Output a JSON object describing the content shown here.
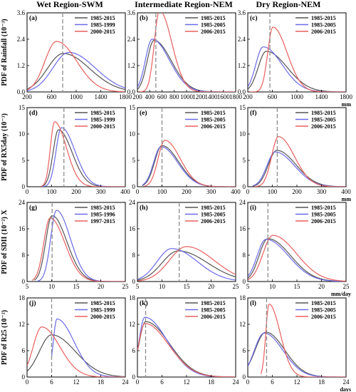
{
  "colors": {
    "black": "#555555",
    "blue": "#6a6ae8",
    "red": "#e8605e",
    "dashed": "#8c8c8c"
  },
  "column_titles": [
    "Wet Region-SWM",
    "Intermediate Region-NEM",
    "Dry Region-NEM"
  ],
  "chart_data": [
    {
      "type": "line",
      "ylabel": "PDF of Rainfall (10⁻³)",
      "unit": "mm",
      "xlim": [
        200,
        1800
      ],
      "ylim": [
        0,
        3.6
      ],
      "yticks": [
        0,
        1.2,
        2.4,
        3.6
      ],
      "ytick_labels": [
        "0.0",
        "1.2",
        "2.4",
        "3.6"
      ],
      "xticks": [
        200,
        600,
        1000,
        1400,
        1800
      ],
      "xticks_panel1": [
        200,
        400,
        600,
        800,
        1000,
        1200,
        1400,
        1600,
        1800
      ],
      "panels": [
        {
          "label": "(a)",
          "dashed_x": 780,
          "legend": [
            "1985-2015",
            "1985-1999",
            "2000-2015"
          ],
          "series": [
            {
              "name": "1985-2015",
              "color": "black",
              "curve": {
                "x0": 200,
                "x1": 1800,
                "mode": 790,
                "peak": 1.75,
                "sl": 260,
                "sr": 430
              }
            },
            {
              "name": "1985-1999",
              "color": "blue",
              "curve": {
                "x0": 200,
                "x1": 1800,
                "mode": 880,
                "peak": 1.8,
                "sl": 260,
                "sr": 430
              }
            },
            {
              "name": "2000-2015",
              "color": "red",
              "curve": {
                "x0": 200,
                "x1": 1800,
                "mode": 680,
                "peak": 2.3,
                "sl": 190,
                "sr": 330
              }
            }
          ]
        },
        {
          "label": "(b)",
          "dashed_x": 500,
          "legend": [
            "1985-2015",
            "1985-2005",
            "2006-2015"
          ],
          "series": [
            {
              "name": "1985-2015",
              "color": "black",
              "curve": {
                "x0": 200,
                "x1": 1800,
                "mode": 470,
                "peak": 2.35,
                "sl": 110,
                "sr": 280
              }
            },
            {
              "name": "1985-2005",
              "color": "blue",
              "curve": {
                "x0": 200,
                "x1": 1800,
                "mode": 440,
                "peak": 2.4,
                "sl": 110,
                "sr": 280
              }
            },
            {
              "name": "2006-2015",
              "color": "red",
              "curve": {
                "x0": 200,
                "x1": 1800,
                "mode": 560,
                "peak": 3.7,
                "sl": 85,
                "sr": 200
              }
            }
          ]
        },
        {
          "label": "(c)",
          "dashed_x": 560,
          "legend": [
            "1985-2015",
            "1985-2005",
            "2006-2015"
          ],
          "series": [
            {
              "name": "1985-2015",
              "color": "black",
              "curve": {
                "x0": 200,
                "x1": 1800,
                "mode": 500,
                "peak": 1.85,
                "sl": 130,
                "sr": 340
              }
            },
            {
              "name": "1985-2005",
              "color": "blue",
              "curve": {
                "x0": 200,
                "x1": 1800,
                "mode": 450,
                "peak": 2.05,
                "sl": 120,
                "sr": 310
              }
            },
            {
              "name": "2006-2015",
              "color": "red",
              "curve": {
                "x0": 200,
                "x1": 1800,
                "mode": 610,
                "peak": 2.95,
                "sl": 85,
                "sr": 230
              }
            }
          ]
        }
      ]
    },
    {
      "type": "line",
      "ylabel": "PDF of RX5day (10⁻³)",
      "unit": "mm",
      "xlim": [
        0,
        400
      ],
      "ylim": [
        0,
        15
      ],
      "yticks": [
        0,
        5,
        10,
        15
      ],
      "ytick_labels": [
        "0",
        "5",
        "10",
        "15"
      ],
      "xticks": [
        0,
        100,
        200,
        300,
        400
      ],
      "panels": [
        {
          "label": "(d)",
          "dashed_x": 150,
          "legend": [
            "1985-2015",
            "1985-1999",
            "2000-2015"
          ],
          "series": [
            {
              "name": "1985-2015",
              "color": "black",
              "curve": {
                "x0": 60,
                "x1": 400,
                "mode": 128,
                "peak": 10.8,
                "sl": 22,
                "sr": 55
              }
            },
            {
              "name": "1985-1999",
              "color": "blue",
              "curve": {
                "x0": 60,
                "x1": 400,
                "mode": 140,
                "peak": 11.2,
                "sl": 22,
                "sr": 55
              }
            },
            {
              "name": "2000-2015",
              "color": "red",
              "curve": {
                "x0": 55,
                "x1": 400,
                "mode": 112,
                "peak": 12.3,
                "sl": 17,
                "sr": 48
              }
            }
          ]
        },
        {
          "label": "(e)",
          "dashed_x": 100,
          "legend": [
            "1985-2015",
            "1985-2005",
            "2006-2015"
          ],
          "series": [
            {
              "name": "1985-2015",
              "color": "black",
              "curve": {
                "x0": 20,
                "x1": 400,
                "mode": 100,
                "peak": 7.8,
                "sl": 30,
                "sr": 68
              }
            },
            {
              "name": "1985-2005",
              "color": "blue",
              "curve": {
                "x0": 20,
                "x1": 400,
                "mode": 96,
                "peak": 7.6,
                "sl": 30,
                "sr": 68
              }
            },
            {
              "name": "2006-2015",
              "color": "red",
              "curve": {
                "x0": 25,
                "x1": 400,
                "mode": 112,
                "peak": 8.8,
                "sl": 28,
                "sr": 62
              }
            }
          ]
        },
        {
          "label": "(f)",
          "dashed_x": 120,
          "legend": [
            "1985-2015",
            "1985-2005",
            "2006-2015"
          ],
          "series": [
            {
              "name": "1985-2015",
              "color": "black",
              "curve": {
                "x0": 20,
                "x1": 400,
                "mode": 118,
                "peak": 6.9,
                "sl": 34,
                "sr": 78
              }
            },
            {
              "name": "1985-2005",
              "color": "blue",
              "curve": {
                "x0": 20,
                "x1": 400,
                "mode": 112,
                "peak": 6.6,
                "sl": 34,
                "sr": 78
              }
            },
            {
              "name": "2006-2015",
              "color": "red",
              "curve": {
                "x0": 25,
                "x1": 400,
                "mode": 125,
                "peak": 9.5,
                "sl": 28,
                "sr": 65
              }
            }
          ]
        }
      ]
    },
    {
      "type": "line",
      "ylabel": "PDF of SDII (10⁻²) X",
      "unit": "mm/day",
      "xlim": [
        5,
        25
      ],
      "ylim": [
        0,
        24
      ],
      "yticks": [
        0,
        8,
        16,
        24
      ],
      "ytick_labels": [
        "0",
        "8",
        "16",
        "24"
      ],
      "xticks": [
        5,
        10,
        15,
        20,
        25
      ],
      "panels": [
        {
          "label": "(g)",
          "dashed_x": 10.1,
          "legend": [
            "1985-2015",
            "1985-1996",
            "1997-2015"
          ],
          "series": [
            {
              "name": "1985-2015",
              "color": "black",
              "curve": {
                "x0": 6.5,
                "x1": 25,
                "mode": 10.1,
                "peak": 20.0,
                "sl": 1.3,
                "sr": 3.0
              }
            },
            {
              "name": "1985-1996",
              "color": "blue",
              "curve": {
                "x0": 7.0,
                "x1": 25,
                "mode": 11.0,
                "peak": 21.6,
                "sl": 1.2,
                "sr": 2.8
              }
            },
            {
              "name": "1997-2015",
              "color": "red",
              "curve": {
                "x0": 6.0,
                "x1": 25,
                "mode": 9.7,
                "peak": 19.3,
                "sl": 1.3,
                "sr": 3.0
              }
            }
          ]
        },
        {
          "label": "(h)",
          "dashed_x": 13.5,
          "legend": [
            "1985-2015",
            "1985-2005",
            "2006-2015"
          ],
          "series": [
            {
              "name": "1985-2015",
              "color": "black",
              "curve": {
                "x0": 5,
                "x1": 25,
                "mode": 13.3,
                "peak": 9.3,
                "sl": 3.3,
                "sr": 6.0
              }
            },
            {
              "name": "1985-2005",
              "color": "blue",
              "curve": {
                "x0": 5,
                "x1": 25,
                "mode": 12.0,
                "peak": 10.0,
                "sl": 3.0,
                "sr": 5.2
              }
            },
            {
              "name": "2006-2015",
              "color": "red",
              "curve": {
                "x0": 5,
                "x1": 25,
                "mode": 15.0,
                "peak": 10.6,
                "sl": 3.5,
                "sr": 5.6
              }
            }
          ]
        },
        {
          "label": "(i)",
          "dashed_x": 9.1,
          "legend": [
            "1985-2015",
            "1985-2005",
            "2006-2015"
          ],
          "series": [
            {
              "name": "1985-2015",
              "color": "black",
              "curve": {
                "x0": 5,
                "x1": 25,
                "mode": 9.1,
                "peak": 13.0,
                "sl": 1.8,
                "sr": 4.6
              }
            },
            {
              "name": "1985-2005",
              "color": "blue",
              "curve": {
                "x0": 5,
                "x1": 25,
                "mode": 8.7,
                "peak": 12.8,
                "sl": 1.8,
                "sr": 4.6
              }
            },
            {
              "name": "2006-2015",
              "color": "red",
              "curve": {
                "x0": 5,
                "x1": 25,
                "mode": 10.1,
                "peak": 14.0,
                "sl": 2.0,
                "sr": 4.8
              }
            }
          ]
        }
      ]
    },
    {
      "type": "line",
      "ylabel": "PDF of R25 (10⁻²)",
      "unit": "days",
      "xlim": [
        0,
        24
      ],
      "ylim": [
        0,
        18
      ],
      "yticks": [
        0,
        6,
        12,
        18
      ],
      "ytick_labels": [
        "0",
        "6",
        "12",
        "18"
      ],
      "xticks": [
        0,
        6,
        12,
        18,
        24
      ],
      "panels": [
        {
          "label": "(j)",
          "dashed_x": 6.0,
          "legend": [
            "1985-2015",
            "1985-1999",
            "2000-2015"
          ],
          "series": [
            {
              "name": "1985-2015",
              "color": "black",
              "curve": {
                "x0": 0,
                "x1": 24,
                "mode": 6.0,
                "peak": 9.6,
                "sl": 3.0,
                "sr": 5.8
              }
            },
            {
              "name": "1985-1999",
              "color": "blue",
              "curve": {
                "x0": 6.0,
                "x1": 24,
                "mode": 7.3,
                "peak": 13.2,
                "sl": 0.9,
                "sr": 4.2
              }
            },
            {
              "name": "2000-2015",
              "color": "red",
              "curve": {
                "x0": 0,
                "x1": 24,
                "mode": 3.6,
                "peak": 11.4,
                "sl": 2.1,
                "sr": 4.4
              }
            }
          ]
        },
        {
          "label": "(k)",
          "dashed_x": 2.0,
          "legend": [
            "1985-2015",
            "1985-2005",
            "2006-2015"
          ],
          "series": [
            {
              "name": "1985-2015",
              "color": "black",
              "curve": {
                "x0": 0,
                "x1": 24,
                "mode": 2.0,
                "peak": 12.6,
                "sl": 1.6,
                "sr": 5.8
              }
            },
            {
              "name": "1985-2005",
              "color": "blue",
              "curve": {
                "x0": 0,
                "x1": 24,
                "mode": 1.8,
                "peak": 13.6,
                "sl": 1.4,
                "sr": 5.5
              }
            },
            {
              "name": "2006-2015",
              "color": "red",
              "curve": {
                "x0": 0,
                "x1": 24,
                "mode": 1.8,
                "peak": 12.2,
                "sl": 1.5,
                "sr": 5.8
              }
            }
          ]
        },
        {
          "label": "(l)",
          "dashed_x": 4.6,
          "legend": [
            "1985-2015",
            "1985-2005",
            "2006-2015"
          ],
          "series": [
            {
              "name": "1985-2015",
              "color": "black",
              "curve": {
                "x0": 0,
                "x1": 24,
                "mode": 4.4,
                "peak": 10.2,
                "sl": 2.6,
                "sr": 4.6
              }
            },
            {
              "name": "1985-2005",
              "color": "blue",
              "curve": {
                "x0": 0,
                "x1": 24,
                "mode": 4.0,
                "peak": 10.0,
                "sl": 2.4,
                "sr": 4.6
              }
            },
            {
              "name": "2006-2015",
              "color": "red",
              "curve": {
                "x0": 3.2,
                "x1": 24,
                "mode": 5.2,
                "peak": 16.6,
                "sl": 0.8,
                "sr": 2.7
              }
            }
          ]
        }
      ]
    }
  ]
}
